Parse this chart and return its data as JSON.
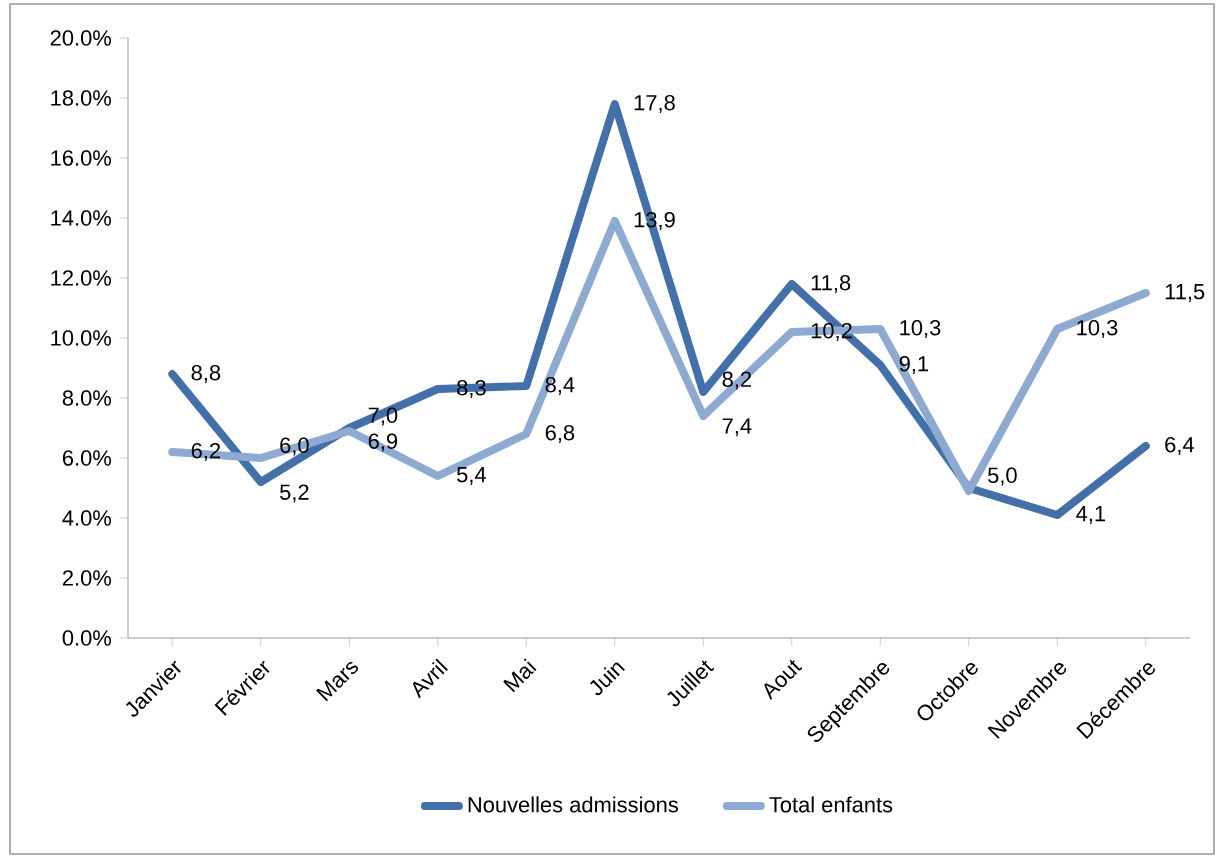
{
  "chart_data": {
    "type": "line",
    "categories": [
      "Janvier",
      "Février",
      "Mars",
      "Avril",
      "Mai",
      "Juin",
      "Juillet",
      "Aout",
      "Septembre",
      "Octobre",
      "Novembre",
      "Décembre"
    ],
    "series": [
      {
        "name": "Nouvelles admissions",
        "color": "#4470aa",
        "values": [
          8.8,
          5.2,
          7.0,
          8.3,
          8.4,
          17.8,
          8.2,
          11.8,
          9.1,
          5.0,
          4.1,
          6.4
        ],
        "value_labels": [
          "8,8",
          "5,2",
          "7,0",
          "8,3",
          "8,4",
          "17,8",
          "8,2",
          "11,8",
          "9,1",
          "5,0",
          "4,1",
          "6,4"
        ]
      },
      {
        "name": "Total enfants",
        "color": "#8faad1",
        "values": [
          6.2,
          6.0,
          6.9,
          5.4,
          6.8,
          13.9,
          7.4,
          10.2,
          10.3,
          4.9,
          10.3,
          11.5
        ],
        "value_labels": [
          "6,2",
          "6,0",
          "6,9",
          "5,4",
          "6,8",
          "13,9",
          "7,4",
          "10,2",
          "10,3",
          null,
          "10,3",
          "11,5"
        ]
      }
    ],
    "ylim": [
      0,
      20
    ],
    "yticks": [
      {
        "value": 0,
        "label": "0.0%"
      },
      {
        "value": 2,
        "label": "2.0%"
      },
      {
        "value": 4,
        "label": "4.0%"
      },
      {
        "value": 6,
        "label": "6.0%"
      },
      {
        "value": 8,
        "label": "8.0%"
      },
      {
        "value": 10,
        "label": "10.0%"
      },
      {
        "value": 12,
        "label": "12.0%"
      },
      {
        "value": 14,
        "label": "14.0%"
      },
      {
        "value": 16,
        "label": "16.0%"
      },
      {
        "value": 18,
        "label": "18.0%"
      },
      {
        "value": 20,
        "label": "20.0%"
      }
    ],
    "grid": false,
    "legend": "bottom",
    "marker": "none",
    "line_style": "solid"
  }
}
